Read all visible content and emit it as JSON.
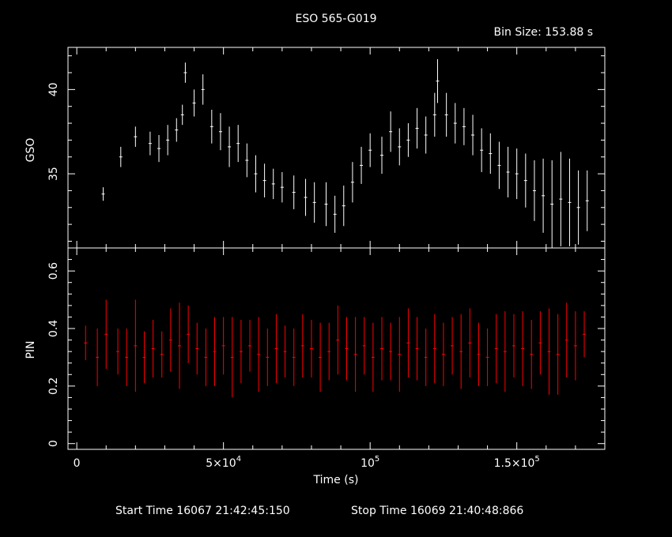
{
  "header": {
    "title": "ESO 565-G019",
    "bin_size": "Bin Size: 153.88 s"
  },
  "footer": {
    "start_time": "Start Time 16067 21:42:45:150",
    "stop_time": "Stop Time 16069 21:40:48:866"
  },
  "colors": {
    "gso": "#ffffff",
    "pin": "#ff0000",
    "axes": "#ffffff",
    "background": "#000000"
  },
  "chart_data": [
    {
      "type": "line",
      "panel": "top",
      "title": "ESO 565-G019",
      "ylabel": "GSO",
      "xlim": [
        -3000,
        180000
      ],
      "ylim": [
        30.6,
        42.5
      ],
      "y_ticks": [
        35,
        40
      ],
      "y_tick_labels": [
        "35",
        "40"
      ],
      "series": [
        {
          "name": "",
          "x": [
            9000,
            15000,
            20000,
            25000,
            28000,
            31000,
            34000,
            36000,
            37000,
            40000,
            43000,
            46000,
            49000,
            52000,
            55000,
            58000,
            61000,
            64000,
            67000,
            70000,
            74000,
            78000,
            81000,
            85000,
            88000,
            91000,
            94000,
            97000,
            100000,
            104000,
            107000,
            110000,
            113000,
            116000,
            119000,
            122000,
            123000,
            126000,
            129000,
            132000,
            135000,
            138000,
            141000,
            144000,
            147000,
            150000,
            153000,
            156000,
            159000,
            162000,
            165000,
            168000,
            171000,
            174000
          ],
          "y": [
            33.8,
            36.0,
            37.2,
            36.8,
            36.5,
            37.0,
            37.6,
            38.5,
            41.0,
            39.2,
            40.0,
            37.8,
            37.5,
            36.6,
            36.8,
            35.8,
            35.0,
            34.6,
            34.4,
            34.2,
            33.9,
            33.6,
            33.3,
            33.2,
            32.6,
            33.1,
            34.5,
            35.5,
            36.4,
            36.1,
            37.5,
            36.6,
            37.0,
            37.7,
            37.3,
            38.5,
            40.5,
            38.5,
            38.0,
            37.8,
            37.3,
            36.4,
            36.2,
            35.5,
            35.1,
            35.0,
            34.6,
            34.0,
            33.7,
            33.2,
            33.5,
            33.3,
            33.0,
            33.4
          ],
          "err": [
            0.4,
            0.6,
            0.6,
            0.7,
            0.8,
            0.9,
            0.7,
            0.6,
            0.6,
            0.8,
            0.9,
            1.0,
            1.1,
            1.2,
            1.1,
            1.0,
            1.1,
            1.0,
            0.9,
            0.9,
            1.0,
            1.1,
            1.2,
            1.3,
            1.1,
            1.2,
            1.2,
            1.1,
            1.0,
            1.1,
            1.2,
            1.1,
            1.0,
            1.2,
            1.1,
            1.3,
            1.3,
            1.3,
            1.2,
            1.1,
            1.2,
            1.3,
            1.2,
            1.4,
            1.5,
            1.5,
            1.6,
            1.8,
            2.2,
            2.6,
            2.8,
            2.6,
            2.2,
            1.8
          ]
        }
      ]
    },
    {
      "type": "line",
      "panel": "bottom",
      "xlabel": "Time (s)",
      "ylabel": "PIN",
      "xlim": [
        -3000,
        180000
      ],
      "ylim": [
        -0.02,
        0.68
      ],
      "y_ticks": [
        0,
        0.2,
        0.4,
        0.6
      ],
      "y_tick_labels": [
        "0",
        "0.2",
        "0.4",
        "0.6"
      ],
      "x_ticks": [
        0,
        50000,
        100000,
        150000
      ],
      "series": [
        {
          "name": "",
          "x": [
            3000,
            7000,
            10000,
            14000,
            17000,
            20000,
            23000,
            26000,
            29000,
            32000,
            35000,
            38000,
            41000,
            44000,
            47000,
            50000,
            53000,
            56000,
            59000,
            62000,
            65000,
            68000,
            71000,
            74000,
            77000,
            80000,
            83000,
            86000,
            89000,
            92000,
            95000,
            98000,
            101000,
            104000,
            107000,
            110000,
            113000,
            116000,
            119000,
            122000,
            125000,
            128000,
            131000,
            134000,
            137000,
            140000,
            143000,
            146000,
            149000,
            152000,
            155000,
            158000,
            161000,
            164000,
            167000,
            170000,
            173000
          ],
          "y": [
            0.35,
            0.3,
            0.38,
            0.32,
            0.3,
            0.34,
            0.3,
            0.33,
            0.31,
            0.36,
            0.34,
            0.38,
            0.33,
            0.3,
            0.32,
            0.34,
            0.3,
            0.32,
            0.34,
            0.31,
            0.3,
            0.33,
            0.32,
            0.3,
            0.34,
            0.33,
            0.3,
            0.32,
            0.36,
            0.33,
            0.31,
            0.34,
            0.3,
            0.33,
            0.32,
            0.31,
            0.35,
            0.33,
            0.3,
            0.33,
            0.31,
            0.34,
            0.32,
            0.35,
            0.31,
            0.3,
            0.33,
            0.32,
            0.34,
            0.33,
            0.31,
            0.35,
            0.32,
            0.31,
            0.36,
            0.34,
            0.38
          ],
          "err": [
            0.06,
            0.1,
            0.12,
            0.08,
            0.1,
            0.16,
            0.09,
            0.1,
            0.08,
            0.11,
            0.15,
            0.1,
            0.09,
            0.1,
            0.12,
            0.1,
            0.14,
            0.11,
            0.09,
            0.13,
            0.1,
            0.12,
            0.09,
            0.1,
            0.11,
            0.1,
            0.12,
            0.1,
            0.12,
            0.11,
            0.13,
            0.1,
            0.12,
            0.11,
            0.1,
            0.13,
            0.12,
            0.11,
            0.1,
            0.12,
            0.11,
            0.1,
            0.13,
            0.12,
            0.11,
            0.1,
            0.12,
            0.14,
            0.11,
            0.13,
            0.12,
            0.11,
            0.15,
            0.14,
            0.13,
            0.12,
            0.08
          ]
        }
      ]
    }
  ]
}
